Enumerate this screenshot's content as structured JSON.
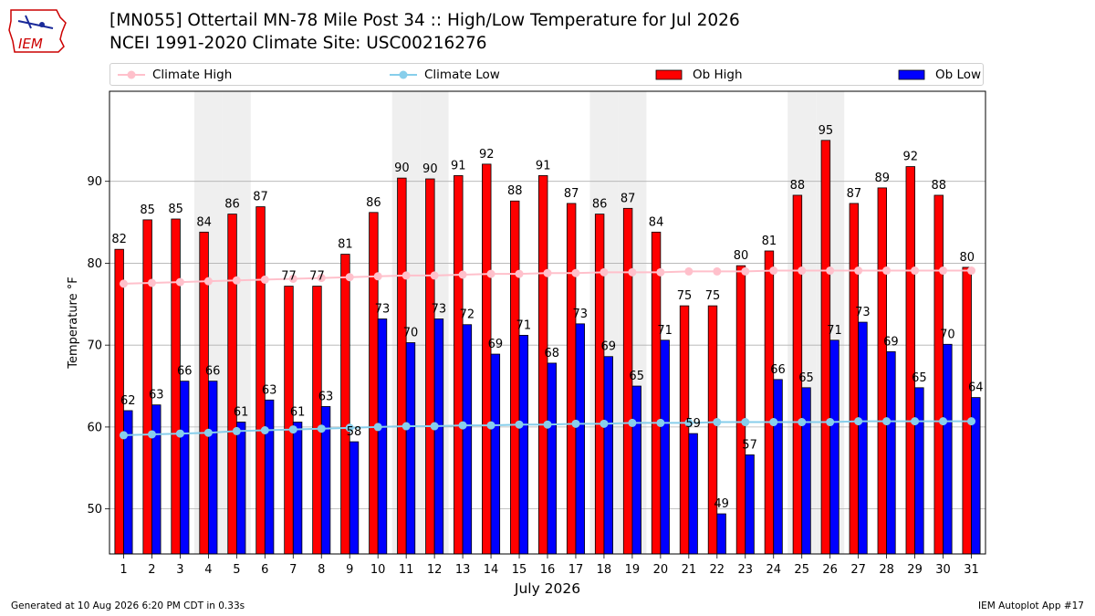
{
  "header": {
    "title_line1": "[MN055] Ottertail MN-78 Mile Post 34 :: High/Low Temperature for Jul 2026",
    "title_line2": "NCEI 1991-2020 Climate Site: USC00216276",
    "logo_text": "IEM"
  },
  "footer": {
    "left": "Generated at 10 Aug 2026 6:20 PM CDT in 0.33s",
    "right": "IEM Autoplot App #17"
  },
  "colors": {
    "ob_high": "#ff0000",
    "ob_low": "#0000ff",
    "climate_high": "#ffc0cb",
    "climate_low": "#87ceeb",
    "weekend_band": "#efefef",
    "grid": "#b0b0b0",
    "logo": "#cc0000"
  },
  "chart_data": {
    "type": "bar",
    "xlabel": "July 2026",
    "ylabel": "Temperature °F",
    "ylim": [
      44.5,
      101
    ],
    "yticks": [
      50,
      60,
      70,
      80,
      90
    ],
    "grid": "horizontal",
    "legend_placement": "top",
    "categories": [
      "1",
      "2",
      "3",
      "4",
      "5",
      "6",
      "7",
      "8",
      "9",
      "10",
      "11",
      "12",
      "13",
      "14",
      "15",
      "16",
      "17",
      "18",
      "19",
      "20",
      "21",
      "22",
      "23",
      "24",
      "25",
      "26",
      "27",
      "28",
      "29",
      "30",
      "31"
    ],
    "shaded_days": [
      "4",
      "5",
      "11",
      "12",
      "18",
      "19",
      "25",
      "26"
    ],
    "series": [
      {
        "name": "Climate High",
        "type": "line",
        "values": [
          77.5,
          77.6,
          77.7,
          77.8,
          77.9,
          78.0,
          78.1,
          78.2,
          78.3,
          78.4,
          78.5,
          78.5,
          78.6,
          78.7,
          78.7,
          78.8,
          78.8,
          78.9,
          78.9,
          78.9,
          79.0,
          79.0,
          79.0,
          79.1,
          79.1,
          79.1,
          79.1,
          79.1,
          79.1,
          79.1,
          79.1
        ]
      },
      {
        "name": "Climate Low",
        "type": "line",
        "values": [
          59.0,
          59.1,
          59.2,
          59.3,
          59.5,
          59.6,
          59.7,
          59.8,
          59.9,
          60.0,
          60.1,
          60.1,
          60.2,
          60.2,
          60.3,
          60.3,
          60.4,
          60.4,
          60.5,
          60.5,
          60.5,
          60.6,
          60.6,
          60.6,
          60.6,
          60.6,
          60.7,
          60.7,
          60.7,
          60.7,
          60.7
        ]
      },
      {
        "name": "Ob High",
        "type": "bar",
        "values": [
          81.7,
          85.3,
          85.4,
          83.8,
          86.0,
          86.9,
          77.2,
          77.2,
          81.1,
          86.2,
          90.4,
          90.3,
          90.7,
          92.1,
          87.6,
          90.7,
          87.3,
          86.0,
          86.7,
          83.8,
          74.8,
          74.8,
          79.7,
          81.5,
          88.3,
          95.0,
          87.3,
          89.2,
          91.8,
          88.3,
          79.5
        ],
        "labels": [
          "82",
          "85",
          "85",
          "84",
          "86",
          "87",
          "77",
          "77",
          "81",
          "86",
          "90",
          "90",
          "91",
          "92",
          "88",
          "91",
          "87",
          "86",
          "87",
          "84",
          "75",
          "75",
          "80",
          "81",
          "88",
          "95",
          "87",
          "89",
          "92",
          "88",
          "80"
        ]
      },
      {
        "name": "Ob Low",
        "type": "bar",
        "values": [
          62.0,
          62.7,
          65.6,
          65.6,
          60.6,
          63.3,
          60.6,
          62.5,
          58.2,
          73.2,
          70.3,
          73.2,
          72.5,
          68.9,
          71.2,
          67.8,
          72.6,
          68.6,
          65.0,
          70.6,
          59.2,
          49.4,
          56.6,
          65.8,
          64.8,
          70.6,
          72.8,
          69.2,
          64.8,
          70.1,
          63.6
        ],
        "labels": [
          "62",
          "63",
          "66",
          "66",
          "61",
          "63",
          "61",
          "63",
          "58",
          "73",
          "70",
          "73",
          "72",
          "69",
          "71",
          "68",
          "73",
          "69",
          "65",
          "71",
          "59",
          "49",
          "57",
          "66",
          "65",
          "71",
          "73",
          "69",
          "65",
          "70",
          "64"
        ]
      }
    ]
  }
}
